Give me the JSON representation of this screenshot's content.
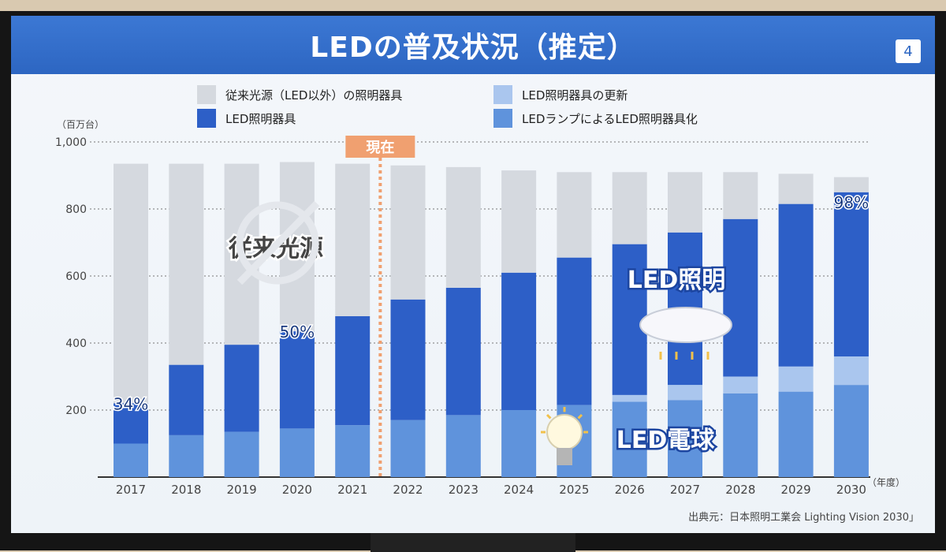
{
  "slide": {
    "title": "LEDの普及状況（推定）",
    "page_number": "4",
    "source": "出典元：日本照明工業会 Lighting Vision 2030」"
  },
  "legend": [
    {
      "label": "従来光源（LED以外）の照明器具",
      "color": "#d5d9df"
    },
    {
      "label": "LED照明器具の更新",
      "color": "#aac6ee"
    },
    {
      "label": "LED照明器具",
      "color": "#2d5fc7"
    },
    {
      "label": "LEDランプによるLED照明器具化",
      "color": "#5f93dc"
    }
  ],
  "annotations": {
    "now_label": "現在",
    "traditional_label": "従来光源",
    "led_lighting_label": "LED照明",
    "led_bulb_label": "LED電球",
    "pct_2017": "34%",
    "pct_2020": "50%",
    "pct_2030": "98%"
  },
  "chart_data": {
    "type": "bar",
    "stacked": true,
    "title": "LEDの普及状況（推定）",
    "yunit": "（百万台）",
    "xunit": "（年度）",
    "ylim": [
      0,
      1000
    ],
    "yticks": [
      200,
      400,
      600,
      800,
      1000
    ],
    "ytick_labels": [
      "200",
      "400",
      "600",
      "800",
      "1,000"
    ],
    "grid": true,
    "categories": [
      "2017",
      "2018",
      "2019",
      "2020",
      "2021",
      "2022",
      "2023",
      "2024",
      "2025",
      "2026",
      "2027",
      "2028",
      "2029",
      "2030"
    ],
    "series": [
      {
        "name": "LEDランプによるLED照明器具化",
        "color": "#5f93dc",
        "values": [
          100,
          125,
          135,
          145,
          155,
          170,
          185,
          200,
          215,
          225,
          230,
          250,
          255,
          275
        ]
      },
      {
        "name": "LED照明器具の更新",
        "color": "#aac6ee",
        "values": [
          0,
          0,
          0,
          0,
          0,
          0,
          0,
          0,
          0,
          20,
          45,
          50,
          75,
          85
        ]
      },
      {
        "name": "LED照明器具",
        "color": "#2d5fc7",
        "values": [
          120,
          210,
          260,
          290,
          325,
          360,
          380,
          410,
          440,
          450,
          455,
          470,
          485,
          490
        ]
      },
      {
        "name": "従来光源（LED以外）の照明器具",
        "color": "#d5d9df",
        "values": [
          715,
          600,
          540,
          505,
          455,
          400,
          360,
          305,
          255,
          215,
          180,
          140,
          90,
          45
        ]
      }
    ],
    "now_marker": "2021-2022"
  }
}
